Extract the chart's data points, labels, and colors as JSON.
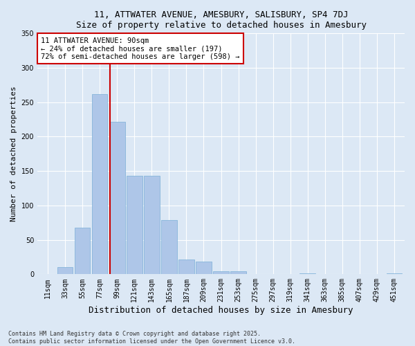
{
  "title1": "11, ATTWATER AVENUE, AMESBURY, SALISBURY, SP4 7DJ",
  "title2": "Size of property relative to detached houses in Amesbury",
  "xlabel": "Distribution of detached houses by size in Amesbury",
  "ylabel": "Number of detached properties",
  "categories": [
    "11sqm",
    "33sqm",
    "55sqm",
    "77sqm",
    "99sqm",
    "121sqm",
    "143sqm",
    "165sqm",
    "187sqm",
    "209sqm",
    "231sqm",
    "253sqm",
    "275sqm",
    "297sqm",
    "319sqm",
    "341sqm",
    "363sqm",
    "385sqm",
    "407sqm",
    "429sqm",
    "451sqm"
  ],
  "values": [
    0,
    10,
    68,
    262,
    222,
    143,
    143,
    79,
    21,
    18,
    4,
    4,
    0,
    0,
    0,
    1,
    0,
    0,
    0,
    0,
    1
  ],
  "bar_color": "#aec6e8",
  "bar_edge_color": "#7aaed6",
  "vline_color": "#cc0000",
  "annotation_line1": "11 ATTWATER AVENUE: 90sqm",
  "annotation_line2": "← 24% of detached houses are smaller (197)",
  "annotation_line3": "72% of semi-detached houses are larger (598) →",
  "annotation_box_color": "#ffffff",
  "annotation_box_edge": "#cc0000",
  "bg_color": "#dce8f5",
  "plot_bg_color": "#dce8f5",
  "footer_text": "Contains HM Land Registry data © Crown copyright and database right 2025.\nContains public sector information licensed under the Open Government Licence v3.0.",
  "ylim": [
    0,
    350
  ],
  "yticks": [
    0,
    50,
    100,
    150,
    200,
    250,
    300,
    350
  ],
  "title_fontsize": 9,
  "tick_fontsize": 7,
  "ylabel_fontsize": 8,
  "xlabel_fontsize": 9
}
